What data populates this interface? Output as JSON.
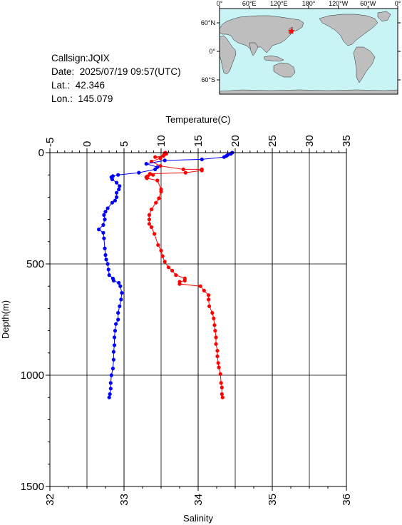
{
  "info": {
    "callsign": "Callsign:JQIX",
    "date": "Date:  2025/07/19 09:57(UTC)",
    "lat": "Lat.:  42.346",
    "lon": "Lon.:  145.079"
  },
  "map": {
    "top_labels": [
      "0°",
      "60°E",
      "120°E",
      "180°",
      "120°W",
      "60°W",
      "0°"
    ],
    "lat_labels": [
      "60°N",
      "0°",
      "60°S"
    ],
    "ocean_color": "#c8f4f6",
    "land_color": "#bebebe",
    "marker_color": "#ff0000",
    "marker_icon": "star-icon",
    "station": {
      "lat": 42.346,
      "lon": 145.079
    }
  },
  "chart_data": {
    "type": "line",
    "title": "",
    "top_axis": {
      "label": "Temperature(C)",
      "range": [
        -5,
        35
      ],
      "ticks": [
        "-5",
        "0",
        "5",
        "10",
        "15",
        "20",
        "25",
        "30",
        "35"
      ]
    },
    "bottom_axis": {
      "label": "Salinity",
      "range": [
        32,
        36
      ],
      "ticks": [
        "32",
        "33",
        "34",
        "35",
        "36"
      ]
    },
    "left_axis": {
      "label": "Depth(m)",
      "range": [
        0,
        1500
      ],
      "reversed": true,
      "ticks": [
        "0",
        "500",
        "1000",
        "1500"
      ]
    },
    "grid": true,
    "series": [
      {
        "variable": "temperature",
        "color": "#ff0000",
        "points": [
          [
            10.6,
            0
          ],
          [
            10.5,
            2
          ],
          [
            10.7,
            5
          ],
          [
            10.4,
            10
          ],
          [
            10.3,
            15
          ],
          [
            9.2,
            20
          ],
          [
            9.9,
            25
          ],
          [
            8.7,
            40
          ],
          [
            9.9,
            60
          ],
          [
            13.0,
            75
          ],
          [
            15.5,
            75
          ],
          [
            15.5,
            80
          ],
          [
            13.3,
            90
          ],
          [
            8.5,
            95
          ],
          [
            8.9,
            100
          ],
          [
            8.2,
            105
          ],
          [
            8.0,
            110
          ],
          [
            8.1,
            115
          ],
          [
            9.5,
            125
          ],
          [
            10.0,
            165
          ],
          [
            10.0,
            175
          ],
          [
            9.7,
            205
          ],
          [
            9.3,
            225
          ],
          [
            8.7,
            255
          ],
          [
            8.4,
            280
          ],
          [
            8.4,
            300
          ],
          [
            8.4,
            320
          ],
          [
            8.7,
            335
          ],
          [
            9.1,
            365
          ],
          [
            9.6,
            415
          ],
          [
            10.0,
            440
          ],
          [
            10.2,
            465
          ],
          [
            10.5,
            490
          ],
          [
            11.0,
            515
          ],
          [
            11.5,
            530
          ],
          [
            12.0,
            550
          ],
          [
            13.2,
            565
          ],
          [
            13.2,
            575
          ],
          [
            12.5,
            580
          ],
          [
            12.5,
            590
          ],
          [
            15.3,
            600
          ],
          [
            15.8,
            620
          ],
          [
            16.4,
            640
          ],
          [
            16.4,
            660
          ],
          [
            16.5,
            690
          ],
          [
            16.9,
            720
          ],
          [
            17.1,
            745
          ],
          [
            17.2,
            775
          ],
          [
            17.3,
            800
          ],
          [
            17.4,
            830
          ],
          [
            17.4,
            860
          ],
          [
            17.6,
            890
          ],
          [
            17.6,
            915
          ],
          [
            17.7,
            945
          ],
          [
            17.8,
            965
          ],
          [
            18.0,
            995
          ],
          [
            18.1,
            1035
          ],
          [
            18.2,
            1055
          ],
          [
            18.2,
            1085
          ],
          [
            18.3,
            1100
          ]
        ]
      },
      {
        "variable": "salinity",
        "color": "#0000ff",
        "points": [
          [
            34.46,
            0
          ],
          [
            34.44,
            5
          ],
          [
            34.4,
            10
          ],
          [
            34.38,
            15
          ],
          [
            34.35,
            20
          ],
          [
            34.05,
            30
          ],
          [
            33.55,
            35
          ],
          [
            33.3,
            50
          ],
          [
            33.45,
            65
          ],
          [
            33.42,
            75
          ],
          [
            33.2,
            90
          ],
          [
            32.92,
            100
          ],
          [
            32.85,
            105
          ],
          [
            32.83,
            110
          ],
          [
            32.84,
            120
          ],
          [
            32.9,
            135
          ],
          [
            32.94,
            150
          ],
          [
            32.93,
            165
          ],
          [
            32.9,
            180
          ],
          [
            32.9,
            200
          ],
          [
            32.88,
            215
          ],
          [
            32.84,
            225
          ],
          [
            32.78,
            250
          ],
          [
            32.75,
            265
          ],
          [
            32.73,
            280
          ],
          [
            32.74,
            300
          ],
          [
            32.72,
            325
          ],
          [
            32.66,
            345
          ],
          [
            32.72,
            360
          ],
          [
            32.73,
            385
          ],
          [
            32.74,
            430
          ],
          [
            32.75,
            460
          ],
          [
            32.76,
            480
          ],
          [
            32.78,
            500
          ],
          [
            32.79,
            525
          ],
          [
            32.8,
            550
          ],
          [
            32.85,
            565
          ],
          [
            32.86,
            575
          ],
          [
            32.93,
            585
          ],
          [
            32.95,
            600
          ],
          [
            32.97,
            630
          ],
          [
            32.96,
            660
          ],
          [
            32.94,
            690
          ],
          [
            32.92,
            720
          ],
          [
            32.92,
            750
          ],
          [
            32.89,
            770
          ],
          [
            32.88,
            800
          ],
          [
            32.87,
            830
          ],
          [
            32.87,
            865
          ],
          [
            32.86,
            895
          ],
          [
            32.86,
            930
          ],
          [
            32.85,
            970
          ],
          [
            32.83,
            1000
          ],
          [
            32.82,
            1035
          ],
          [
            32.82,
            1060
          ],
          [
            32.81,
            1085
          ],
          [
            32.8,
            1100
          ]
        ]
      }
    ]
  }
}
